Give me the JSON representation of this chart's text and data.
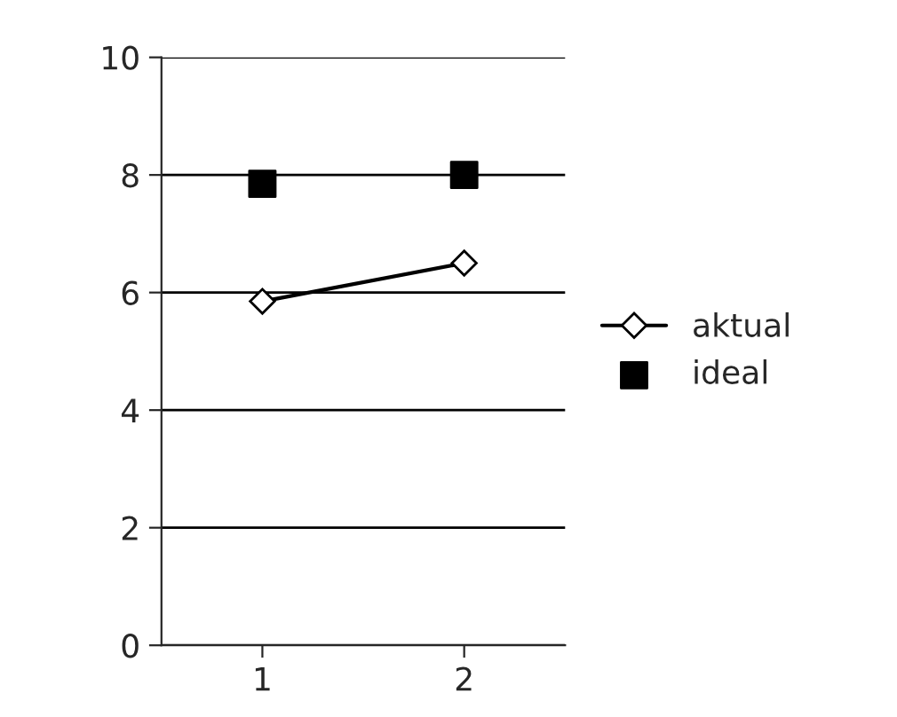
{
  "chart_data": {
    "type": "line",
    "categories": [
      "1",
      "2"
    ],
    "series": [
      {
        "name": "aktual",
        "color": "#000000",
        "values": [
          5.85,
          6.5
        ],
        "marker": "diamond"
      },
      {
        "name": "ideal",
        "type": "scatter",
        "color": "#000000",
        "values": [
          7.85,
          8.0
        ],
        "marker": "square"
      }
    ],
    "ylim": [
      0,
      10
    ],
    "yticks": [
      0,
      2,
      4,
      6,
      8,
      10
    ],
    "grid": "y",
    "legend": "right"
  }
}
